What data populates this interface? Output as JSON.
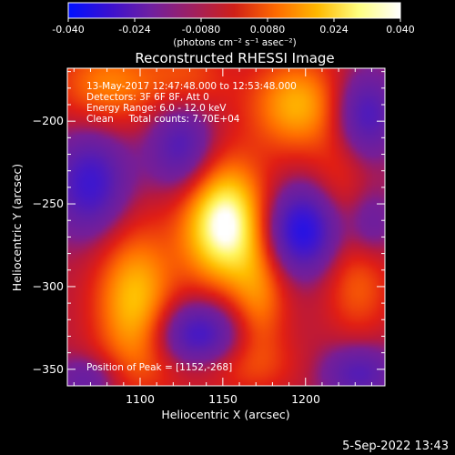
{
  "colorbar": {
    "tick_labels": [
      "-0.040",
      "-0.024",
      "-0.0080",
      "0.0080",
      "0.024",
      "0.040"
    ],
    "tick_values": [
      -0.04,
      -0.024,
      -0.008,
      0.008,
      0.024,
      0.04
    ],
    "range": [
      -0.04,
      0.04
    ],
    "units_label": "(photons cm⁻² s⁻¹ asec⁻²)",
    "gradient_stops": [
      "#0010ff",
      "#3a10d0",
      "#7020a0",
      "#a02060",
      "#d02018",
      "#ff6a00",
      "#ffb800",
      "#ffff80",
      "#ffffff"
    ]
  },
  "chart_data": {
    "type": "heatmap",
    "title": "Reconstructed RHESSI Image",
    "xlabel": "Heliocentric X (arcsec)",
    "ylabel": "Heliocentric Y (arcsec)",
    "xlim": [
      1056,
      1248
    ],
    "ylim": [
      -360,
      -168
    ],
    "x_ticks": [
      1100,
      1150,
      1200
    ],
    "y_ticks": [
      -200,
      -250,
      -300,
      -350
    ],
    "peak": {
      "x": 1152,
      "y": -268,
      "value": 0.04
    },
    "features": [
      {
        "kind": "positive",
        "x": 1151,
        "y": -262,
        "sx": 18,
        "sy": 26,
        "value": 0.042
      },
      {
        "kind": "positive",
        "x": 1097,
        "y": -310,
        "sx": 17,
        "sy": 32,
        "value": 0.027
      },
      {
        "kind": "positive",
        "x": 1195,
        "y": -190,
        "sx": 20,
        "sy": 20,
        "value": 0.024
      },
      {
        "kind": "positive",
        "x": 1080,
        "y": -178,
        "sx": 22,
        "sy": 18,
        "value": 0.018
      },
      {
        "kind": "positive",
        "x": 1128,
        "y": -175,
        "sx": 18,
        "sy": 16,
        "value": 0.012
      },
      {
        "kind": "positive",
        "x": 1172,
        "y": -308,
        "sx": 12,
        "sy": 26,
        "value": 0.016
      },
      {
        "kind": "positive",
        "x": 1232,
        "y": -300,
        "sx": 14,
        "sy": 22,
        "value": 0.013
      },
      {
        "kind": "positive",
        "x": 1220,
        "y": -240,
        "sx": 12,
        "sy": 30,
        "value": 0.009
      },
      {
        "kind": "positive",
        "x": 1150,
        "y": -348,
        "sx": 32,
        "sy": 12,
        "value": 0.01
      },
      {
        "kind": "negative",
        "x": 1198,
        "y": -266,
        "sx": 17,
        "sy": 18,
        "value": -0.034
      },
      {
        "kind": "negative",
        "x": 1134,
        "y": -330,
        "sx": 18,
        "sy": 15,
        "value": -0.028
      },
      {
        "kind": "negative",
        "x": 1070,
        "y": -238,
        "sx": 16,
        "sy": 22,
        "value": -0.026
      },
      {
        "kind": "negative",
        "x": 1125,
        "y": -215,
        "sx": 14,
        "sy": 20,
        "value": -0.022
      },
      {
        "kind": "negative",
        "x": 1235,
        "y": -196,
        "sx": 14,
        "sy": 18,
        "value": -0.024
      },
      {
        "kind": "negative",
        "x": 1232,
        "y": -352,
        "sx": 16,
        "sy": 12,
        "value": -0.02
      },
      {
        "kind": "negative",
        "x": 1068,
        "y": -356,
        "sx": 14,
        "sy": 10,
        "value": -0.014
      },
      {
        "kind": "negative",
        "x": 1240,
        "y": -262,
        "sx": 10,
        "sy": 14,
        "value": -0.012
      }
    ]
  },
  "info": {
    "line1": "13-May-2017 12:47:48.000 to 12:53:48.000",
    "line2": "Detectors: 3F 6F 8F, Att 0",
    "line3": "Energy Range: 6.0 - 12.0 keV",
    "line4": "Clean     Total counts: 7.70E+04"
  },
  "peak_label": "Position of Peak = [1152,-268]",
  "footer_timestamp": "5-Sep-2022 13:43"
}
